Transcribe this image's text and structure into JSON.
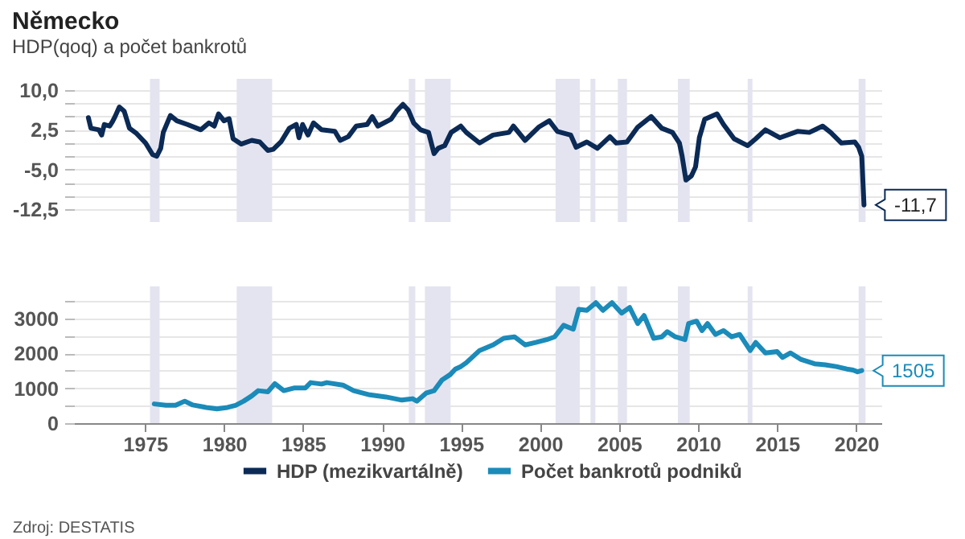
{
  "chart_data": [
    {
      "type": "line",
      "title": "Německo",
      "subtitle": "HDP(qoq) a počet bankrotů",
      "xlim": [
        1970.5,
        2021.6
      ],
      "ylim": [
        -12.5,
        10
      ],
      "yticks": [
        {
          "value": 10,
          "label": "10,0"
        },
        {
          "value": 7.5,
          "label": null
        },
        {
          "value": 5,
          "label": null
        },
        {
          "value": 2.5,
          "label": "2,5"
        },
        {
          "value": 0,
          "label": null
        },
        {
          "value": -2.5,
          "label": null
        },
        {
          "value": -5,
          "label": "-5,0"
        },
        {
          "value": -7.5,
          "label": null
        },
        {
          "value": -10,
          "label": null
        },
        {
          "value": -12.5,
          "label": "-12,5"
        }
      ],
      "tick_labels": "y",
      "grid": "y",
      "legend": "bottom",
      "bands": [
        {
          "axis": "x",
          "from": 1975.31,
          "to": 1975.92,
          "color": "#e4e4f0"
        },
        {
          "axis": "x",
          "from": 1980.8,
          "to": 1983.04,
          "color": "#e4e4f0"
        },
        {
          "axis": "x",
          "from": 1991.69,
          "to": 1992.1,
          "color": "#e4e4f0"
        },
        {
          "axis": "x",
          "from": 1992.71,
          "to": 1994.34,
          "color": "#e4e4f0"
        },
        {
          "axis": "x",
          "from": 2000.98,
          "to": 2002.51,
          "color": "#e4e4f0"
        },
        {
          "axis": "x",
          "from": 2003.19,
          "to": 2003.5,
          "color": "#e4e4f0"
        },
        {
          "axis": "x",
          "from": 2004.92,
          "to": 2005.5,
          "color": "#e4e4f0"
        },
        {
          "axis": "x",
          "from": 2008.72,
          "to": 2009.47,
          "color": "#e4e4f0"
        },
        {
          "axis": "x",
          "from": 2013.14,
          "to": 2013.44,
          "color": "#e4e4f0"
        },
        {
          "axis": "x",
          "from": 2020.16,
          "to": 2020.6,
          "color": "#e4e4f0"
        }
      ],
      "annotations": [
        {
          "text": "-11,7",
          "x": 2020.5,
          "y": -11.7
        }
      ],
      "series": [
        {
          "name": "HDP (mezikvartálně)",
          "color": "#0b2a55",
          "x": [
            1971.41,
            1971.57,
            1972.08,
            1972.25,
            1972.42,
            1972.76,
            1972.93,
            1973.1,
            1973.37,
            1973.68,
            1974.01,
            1974.46,
            1975.03,
            1975.48,
            1975.74,
            1975.99,
            1976.15,
            1976.6,
            1977.01,
            1977.68,
            1978.53,
            1979.04,
            1979.38,
            1979.65,
            1979.99,
            1980.32,
            1980.57,
            1981.08,
            1981.75,
            1982.26,
            1982.77,
            1983.11,
            1983.62,
            1984.13,
            1984.57,
            1984.74,
            1984.97,
            1985.31,
            1985.66,
            1986.17,
            1987.01,
            1987.35,
            1987.86,
            1988.36,
            1989.05,
            1989.38,
            1989.73,
            1990.57,
            1990.91,
            1991.32,
            1991.66,
            1992.0,
            1992.44,
            1992.94,
            1993.29,
            1993.55,
            1993.96,
            1994.37,
            1994.98,
            1995.33,
            1996.17,
            1997.02,
            1998.03,
            1998.31,
            1999.05,
            1999.91,
            2000.58,
            2001.09,
            2001.94,
            2002.28,
            2002.96,
            2003.63,
            2004.42,
            2004.82,
            2005.5,
            2006.18,
            2007.03,
            2007.7,
            2008.38,
            2008.82,
            2008.99,
            2009.23,
            2009.58,
            2009.84,
            2010.08,
            2010.42,
            2011.2,
            2011.61,
            2012.28,
            2013.14,
            2013.65,
            2014.26,
            2015.17,
            2016.29,
            2017.04,
            2017.88,
            2018.39,
            2019.07,
            2019.92,
            2020.16,
            2020.36,
            2020.5
          ],
          "values": [
            4.8,
            2.8,
            2.5,
            1.5,
            3.5,
            3.2,
            4.0,
            5.0,
            6.8,
            6.0,
            2.8,
            1.8,
            0,
            -2.2,
            -2.5,
            -1,
            2.0,
            5.2,
            4.2,
            3.5,
            2.5,
            3.8,
            3.2,
            5.5,
            4.2,
            4.6,
            0.8,
            -0.2,
            0.5,
            0.2,
            -1.4,
            -1.2,
            0.3,
            2.8,
            3.5,
            1.0,
            3.5,
            1.5,
            3.8,
            2.5,
            2.2,
            0.5,
            1.2,
            3.2,
            3.5,
            5.0,
            3.2,
            4.5,
            6.0,
            7.3,
            6.2,
            3.8,
            2.5,
            2.0,
            -2.0,
            -1.0,
            -0.5,
            2.0,
            3.2,
            2.0,
            0,
            1.5,
            2.0,
            3.2,
            0.5,
            3.0,
            4.2,
            2.2,
            1.5,
            -0.8,
            0.2,
            -1.0,
            1.2,
            0,
            0.2,
            3.0,
            5.0,
            2.8,
            2.0,
            0,
            -2.5,
            -7.0,
            -6.2,
            -4.5,
            1.0,
            4.5,
            5.5,
            3.5,
            0.8,
            -0.5,
            0.8,
            2.5,
            1.0,
            2.2,
            2.0,
            3.2,
            2.0,
            0,
            0.2,
            -0.8,
            -2.5,
            -11.7
          ]
        }
      ]
    },
    {
      "type": "line",
      "xlim": [
        1970.5,
        2021.6
      ],
      "xticks": [
        1975,
        1980,
        1985,
        1990,
        1995,
        2000,
        2005,
        2010,
        2015,
        2020
      ],
      "ylim": [
        0,
        3500
      ],
      "yticks": [
        0,
        {
          "value": 500,
          "label": null
        },
        1000,
        {
          "value": 1500,
          "label": null
        },
        2000,
        {
          "value": 2500,
          "label": null
        },
        3000,
        {
          "value": 3500,
          "label": null
        }
      ],
      "grid": "y",
      "legend": "bottom",
      "bands": [
        {
          "axis": "x",
          "from": 1975.31,
          "to": 1975.92,
          "color": "#e4e4f0"
        },
        {
          "axis": "x",
          "from": 1980.8,
          "to": 1983.04,
          "color": "#e4e4f0"
        },
        {
          "axis": "x",
          "from": 1991.69,
          "to": 1992.1,
          "color": "#e4e4f0"
        },
        {
          "axis": "x",
          "from": 1992.71,
          "to": 1994.34,
          "color": "#e4e4f0"
        },
        {
          "axis": "x",
          "from": 2000.98,
          "to": 2002.51,
          "color": "#e4e4f0"
        },
        {
          "axis": "x",
          "from": 2003.19,
          "to": 2003.5,
          "color": "#e4e4f0"
        },
        {
          "axis": "x",
          "from": 2004.92,
          "to": 2005.5,
          "color": "#e4e4f0"
        },
        {
          "axis": "x",
          "from": 2008.72,
          "to": 2009.47,
          "color": "#e4e4f0"
        },
        {
          "axis": "x",
          "from": 2013.14,
          "to": 2013.44,
          "color": "#e4e4f0"
        },
        {
          "axis": "x",
          "from": 2020.16,
          "to": 2020.6,
          "color": "#e4e4f0"
        }
      ],
      "annotations": [
        {
          "text": "1505",
          "x": 2020.36,
          "y": 1505
        },
        "Zdroj: DESTATIS"
      ],
      "series": [
        {
          "name": "Počet bankrotů podniků",
          "color": "#1b8bb9",
          "x": [
            1975.58,
            1976.32,
            1976.93,
            1977.51,
            1978.02,
            1978.87,
            1979.55,
            1980.22,
            1980.73,
            1981.24,
            1981.75,
            1982.16,
            1982.77,
            1983.21,
            1983.78,
            1984.47,
            1985.15,
            1985.48,
            1986.17,
            1986.5,
            1987.52,
            1988.2,
            1989.22,
            1990.24,
            1991.25,
            1991.93,
            1992.2,
            1992.78,
            1993.29,
            1993.8,
            1994.31,
            1994.64,
            1994.98,
            1995.33,
            1996.17,
            1997.02,
            1997.7,
            1998.38,
            1999.05,
            1999.73,
            2000.42,
            2000.92,
            2001.49,
            2002.1,
            2002.45,
            2002.96,
            2003.53,
            2003.98,
            2004.55,
            2005.16,
            2005.67,
            2006.18,
            2006.58,
            2007.19,
            2007.7,
            2008.05,
            2008.56,
            2009.17,
            2009.4,
            2009.91,
            2010.25,
            2010.6,
            2011.1,
            2011.61,
            2012.12,
            2012.63,
            2013.3,
            2013.65,
            2014.26,
            2015.0,
            2015.34,
            2015.85,
            2016.53,
            2017.37,
            2018.05,
            2018.74,
            2019.41,
            2019.81,
            2020.09,
            2020.36
          ],
          "values": [
            550,
            510,
            510,
            630,
            520,
            450,
            410,
            450,
            510,
            630,
            780,
            930,
            900,
            1130,
            930,
            1010,
            1010,
            1160,
            1120,
            1160,
            1090,
            930,
            810,
            750,
            660,
            700,
            630,
            860,
            930,
            1240,
            1390,
            1550,
            1620,
            1730,
            2080,
            2240,
            2430,
            2470,
            2240,
            2310,
            2390,
            2470,
            2800,
            2690,
            3260,
            3230,
            3450,
            3230,
            3450,
            3150,
            3310,
            2850,
            3080,
            2430,
            2470,
            2620,
            2470,
            2390,
            2850,
            2920,
            2650,
            2850,
            2540,
            2650,
            2470,
            2540,
            2080,
            2310,
            2010,
            2050,
            1880,
            2010,
            1820,
            1700,
            1670,
            1620,
            1550,
            1520,
            1470,
            1505
          ]
        }
      ]
    }
  ]
}
